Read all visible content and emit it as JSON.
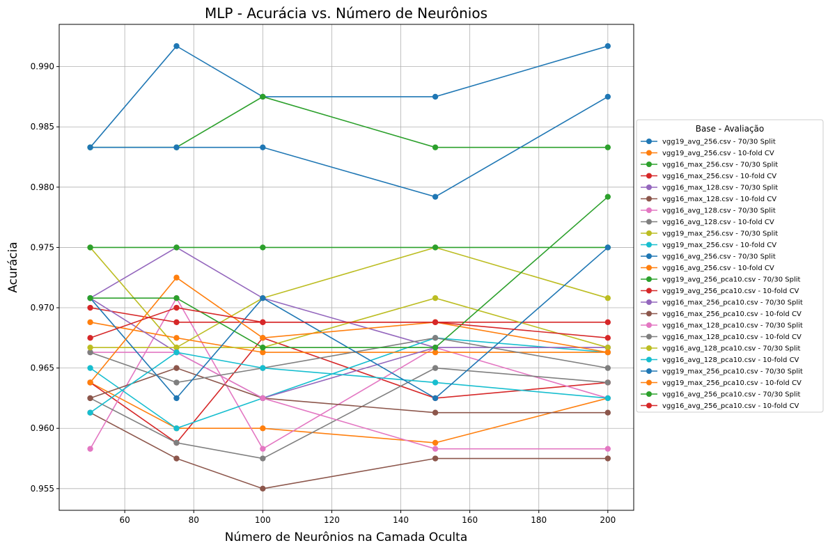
{
  "chart_data": {
    "type": "line",
    "title": "MLP - Acurácia vs. Número de Neurônios",
    "xlabel": "Número de Neurônios na Camada Oculta",
    "ylabel": "Acurácia",
    "x": [
      50,
      75,
      100,
      150,
      200
    ],
    "xlim": [
      41,
      207.5
    ],
    "ylim": [
      0.9532,
      0.9935
    ],
    "xticks": [
      60,
      80,
      100,
      120,
      140,
      160,
      180,
      200
    ],
    "yticks": [
      0.955,
      0.96,
      0.965,
      0.97,
      0.975,
      0.98,
      0.985,
      0.99
    ],
    "grid": true,
    "legend": {
      "title": "Base - Avaliação",
      "placement": "center-right-outside"
    },
    "series": [
      {
        "name": "vgg19_avg_256.csv - 70/30 Split",
        "color": "#1f77b4",
        "values": [
          0.9833,
          0.9917,
          0.9875,
          0.9875,
          0.9917
        ]
      },
      {
        "name": "vgg19_avg_256.csv - 10-fold CV",
        "color": "#ff7f0e",
        "values": [
          0.9638,
          0.96,
          0.96,
          0.9588,
          0.9625
        ]
      },
      {
        "name": "vgg16_max_256.csv - 70/30 Split",
        "color": "#2ca02c",
        "values": [
          0.9833,
          0.9833,
          0.9875,
          0.9833,
          0.9833
        ]
      },
      {
        "name": "vgg16_max_256.csv - 10-fold CV",
        "color": "#d62728",
        "values": [
          0.9638,
          0.9588,
          0.9675,
          0.9625,
          0.9638
        ]
      },
      {
        "name": "vgg16_max_128.csv - 70/30 Split",
        "color": "#9467bd",
        "values": [
          0.9708,
          0.975,
          0.9708,
          0.9667,
          0.9667
        ]
      },
      {
        "name": "vgg16_max_128.csv - 10-fold CV",
        "color": "#8c564b",
        "values": [
          0.9613,
          0.9575,
          0.955,
          0.9575,
          0.9575
        ]
      },
      {
        "name": "vgg16_avg_128.csv - 70/30 Split",
        "color": "#e377c2",
        "values": [
          0.9583,
          0.9708,
          0.9583,
          0.9667,
          0.9625
        ]
      },
      {
        "name": "vgg16_avg_128.csv - 10-fold CV",
        "color": "#7f7f7f",
        "values": [
          0.9625,
          0.9588,
          0.9575,
          0.965,
          0.9638
        ]
      },
      {
        "name": "vgg19_max_256.csv - 70/30 Split",
        "color": "#bcbd22",
        "values": [
          0.975,
          0.9667,
          0.9708,
          0.975,
          0.9708
        ]
      },
      {
        "name": "vgg19_max_256.csv - 10-fold CV",
        "color": "#17becf",
        "values": [
          0.965,
          0.96,
          0.9625,
          0.9675,
          0.9663
        ]
      },
      {
        "name": "vgg16_avg_256.csv - 70/30 Split",
        "color": "#1f77b4",
        "values": [
          0.9833,
          0.9833,
          0.9833,
          0.9792,
          0.9875
        ]
      },
      {
        "name": "vgg16_avg_256.csv - 10-fold CV",
        "color": "#ff7f0e",
        "values": [
          0.9688,
          0.9675,
          0.9663,
          0.9663,
          0.9663
        ]
      },
      {
        "name": "vgg19_avg_256_pca10.csv - 70/30 Split",
        "color": "#2ca02c",
        "values": [
          0.975,
          0.975,
          0.975,
          0.975,
          0.975
        ]
      },
      {
        "name": "vgg19_avg_256_pca10.csv - 10-fold CV",
        "color": "#d62728",
        "values": [
          0.97,
          0.9688,
          0.9688,
          0.9688,
          0.9688
        ]
      },
      {
        "name": "vgg16_max_256_pca10.csv - 70/30 Split",
        "color": "#9467bd",
        "values": [
          0.9708,
          0.9663,
          0.9625,
          0.9667,
          0.9667
        ]
      },
      {
        "name": "vgg16_max_256_pca10.csv - 10-fold CV",
        "color": "#8c564b",
        "values": [
          0.9625,
          0.965,
          0.9625,
          0.9613,
          0.9613
        ]
      },
      {
        "name": "vgg16_max_128_pca10.csv - 70/30 Split",
        "color": "#e377c2",
        "values": [
          0.9663,
          0.9663,
          0.9625,
          0.9583,
          0.9583
        ]
      },
      {
        "name": "vgg16_max_128_pca10.csv - 10-fold CV",
        "color": "#7f7f7f",
        "values": [
          0.9663,
          0.9638,
          0.965,
          0.9675,
          0.965
        ]
      },
      {
        "name": "vgg16_avg_128_pca10.csv - 70/30 Split",
        "color": "#bcbd22",
        "values": [
          0.9667,
          0.9667,
          0.9667,
          0.9708,
          0.9667
        ]
      },
      {
        "name": "vgg16_avg_128_pca10.csv - 10-fold CV",
        "color": "#17becf",
        "values": [
          0.9613,
          0.9663,
          0.965,
          0.9638,
          0.9625
        ]
      },
      {
        "name": "vgg19_max_256_pca10.csv - 70/30 Split",
        "color": "#1f77b4",
        "values": [
          0.9708,
          0.9625,
          0.9708,
          0.9625,
          0.975
        ]
      },
      {
        "name": "vgg19_max_256_pca10.csv - 10-fold CV",
        "color": "#ff7f0e",
        "values": [
          0.9638,
          0.9725,
          0.9675,
          0.9688,
          0.9663
        ]
      },
      {
        "name": "vgg16_avg_256_pca10.csv - 70/30 Split",
        "color": "#2ca02c",
        "values": [
          0.9708,
          0.9708,
          0.9667,
          0.9667,
          0.9792
        ]
      },
      {
        "name": "vgg16_avg_256_pca10.csv - 10-fold CV",
        "color": "#d62728",
        "values": [
          0.9675,
          0.97,
          0.9688,
          0.9688,
          0.9675
        ]
      }
    ]
  }
}
